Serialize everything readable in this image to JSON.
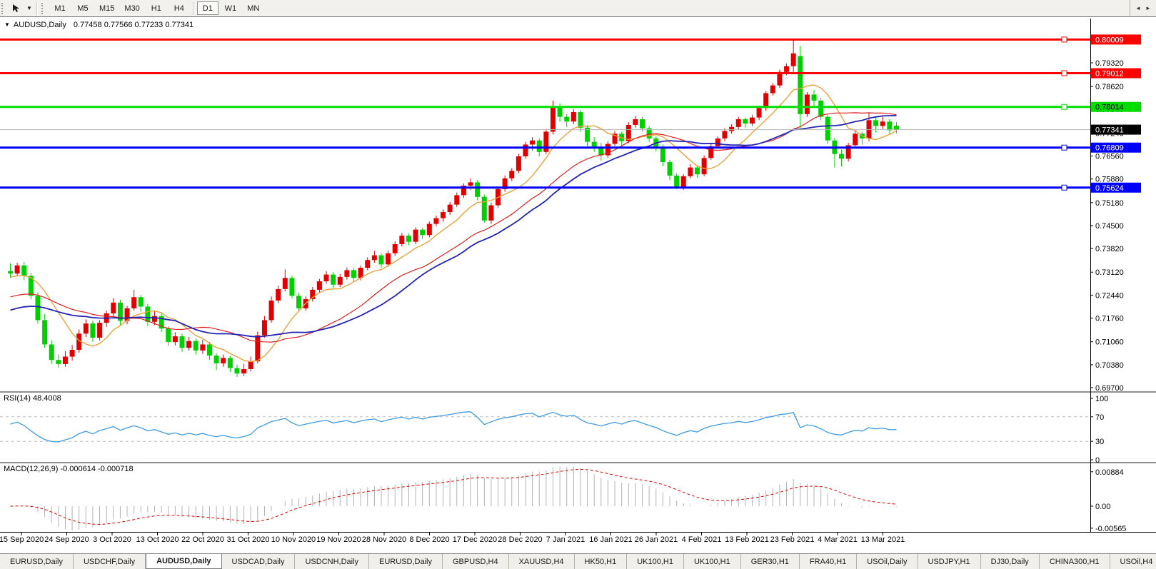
{
  "toolbar": {
    "timeframes": [
      "M1",
      "M5",
      "M15",
      "M30",
      "H1",
      "H4",
      "D1",
      "W1",
      "MN"
    ],
    "active_timeframe": "D1",
    "dropdown_caret": "▼"
  },
  "window": {
    "symbol_period": "AUDUSD,Daily",
    "ohlc_text": "0.77458 0.77566 0.77233 0.77341",
    "title_marker": "▼"
  },
  "chart_data": {
    "type": "candlestick",
    "symbol": "AUDUSD",
    "timeframe": "Daily",
    "last_bar": {
      "open": 0.77458,
      "high": 0.77566,
      "low": 0.77233,
      "close": 0.77341
    },
    "up_color": "#e00000",
    "down_color": "#00cf00",
    "ylim": [
      0.697,
      0.8055
    ],
    "price_axis_ticks": [
      "0.79320",
      "0.78620",
      "0.77940",
      "0.77240",
      "0.76560",
      "0.75880",
      "0.75180",
      "0.74500",
      "0.73820",
      "0.73120",
      "0.72440",
      "0.71760",
      "0.71060",
      "0.70380",
      "0.69700"
    ],
    "date_ticks": [
      "15 Sep 2020",
      "24 Sep 2020",
      "3 Oct 2020",
      "13 Oct 2020",
      "22 Oct 2020",
      "31 Oct 2020",
      "10 Nov 2020",
      "19 Nov 2020",
      "28 Nov 2020",
      "8 Dec 2020",
      "17 Dec 2020",
      "28 Dec 2020",
      "7 Jan 2021",
      "16 Jan 2021",
      "26 Jan 2021",
      "4 Feb 2021",
      "13 Feb 2021",
      "23 Feb 2021",
      "4 Mar 2021",
      "13 Mar 2021"
    ],
    "horizontal_lines": [
      {
        "label": "0.80009",
        "color": "#ff0000",
        "text_color": "#ffffff",
        "kind": "resistance"
      },
      {
        "label": "0.79012",
        "color": "#ff0000",
        "text_color": "#ffffff",
        "kind": "resistance"
      },
      {
        "label": "0.78014",
        "color": "#00dd00",
        "text_color": "#000000",
        "kind": "pivot"
      },
      {
        "label": "0.76809",
        "color": "#0000ff",
        "text_color": "#ffffff",
        "kind": "support"
      },
      {
        "label": "0.75624",
        "color": "#0000ff",
        "text_color": "#ffffff",
        "kind": "support"
      }
    ],
    "current_price": {
      "label": "0.77341",
      "line_color": "#b4b4b4",
      "box_color": "#000000",
      "text_color": "#ffffff"
    },
    "moving_averages": [
      {
        "name": "fast",
        "period": 8,
        "seed": 0.7295,
        "color": "#e8a23c",
        "width": 1.4
      },
      {
        "name": "mid",
        "period": 20,
        "seed": 0.7235,
        "color": "#dd2020",
        "width": 1.2
      },
      {
        "name": "slow",
        "period": 25,
        "seed": 0.7195,
        "color": "#2424b4",
        "width": 1.8
      }
    ],
    "rsi": {
      "label": "RSI(14) 48.4008",
      "period": 14,
      "value": 48.4008,
      "axis_ticks": [
        "100",
        "70",
        "30",
        "0"
      ],
      "levels": [
        70,
        30
      ],
      "line_color": "#3f9be0",
      "level_color": "#bcbcbc"
    },
    "macd": {
      "label": "MACD(12,26,9) -0.000614 -0.000718",
      "fast": 12,
      "slow": 26,
      "signal": 9,
      "value": -0.000614,
      "signal_value": -0.000718,
      "axis_ticks": [
        "0.00884",
        "0.00",
        "-0.00565"
      ],
      "hist_color": "#b2b2b2",
      "signal_color": "#e00000"
    },
    "candles": [
      [
        0.7315,
        0.7338,
        0.7295,
        0.7308
      ],
      [
        0.7308,
        0.734,
        0.73,
        0.7332
      ],
      [
        0.7332,
        0.7342,
        0.7288,
        0.7301
      ],
      [
        0.7301,
        0.731,
        0.7232,
        0.7242
      ],
      [
        0.7242,
        0.7252,
        0.716,
        0.717
      ],
      [
        0.717,
        0.7188,
        0.7088,
        0.7098
      ],
      [
        0.7098,
        0.711,
        0.704,
        0.7052
      ],
      [
        0.7052,
        0.7068,
        0.7029,
        0.704
      ],
      [
        0.704,
        0.7078,
        0.7032,
        0.7062
      ],
      [
        0.7062,
        0.7096,
        0.705,
        0.7082
      ],
      [
        0.7082,
        0.7142,
        0.7074,
        0.713
      ],
      [
        0.713,
        0.7172,
        0.712,
        0.716
      ],
      [
        0.716,
        0.7168,
        0.7106,
        0.7118
      ],
      [
        0.7118,
        0.717,
        0.711,
        0.7162
      ],
      [
        0.7162,
        0.7198,
        0.715,
        0.719
      ],
      [
        0.719,
        0.7235,
        0.7182,
        0.7222
      ],
      [
        0.7222,
        0.723,
        0.7155,
        0.7168
      ],
      [
        0.7168,
        0.7212,
        0.7158,
        0.7205
      ],
      [
        0.7205,
        0.726,
        0.7198,
        0.7238
      ],
      [
        0.7238,
        0.7245,
        0.7195,
        0.721
      ],
      [
        0.721,
        0.7218,
        0.7152,
        0.7165
      ],
      [
        0.7165,
        0.7196,
        0.7155,
        0.7182
      ],
      [
        0.7182,
        0.719,
        0.7135,
        0.7145
      ],
      [
        0.7145,
        0.7152,
        0.7094,
        0.7105
      ],
      [
        0.7105,
        0.7134,
        0.7095,
        0.7122
      ],
      [
        0.7122,
        0.713,
        0.7076,
        0.7088
      ],
      [
        0.7088,
        0.712,
        0.708,
        0.7108
      ],
      [
        0.7108,
        0.7115,
        0.7068,
        0.708
      ],
      [
        0.708,
        0.7112,
        0.707,
        0.7098
      ],
      [
        0.7098,
        0.7105,
        0.7052,
        0.7065
      ],
      [
        0.7065,
        0.7072,
        0.7022,
        0.7042
      ],
      [
        0.7042,
        0.7068,
        0.7032,
        0.7058
      ],
      [
        0.7058,
        0.7064,
        0.7016,
        0.7028
      ],
      [
        0.7028,
        0.7038,
        0.7002,
        0.7012
      ],
      [
        0.7012,
        0.704,
        0.7004,
        0.7025
      ],
      [
        0.7025,
        0.7062,
        0.7018,
        0.7048
      ],
      [
        0.7048,
        0.7136,
        0.7042,
        0.7125
      ],
      [
        0.7125,
        0.7182,
        0.7118,
        0.717
      ],
      [
        0.717,
        0.724,
        0.7162,
        0.7228
      ],
      [
        0.7228,
        0.7272,
        0.722,
        0.7262
      ],
      [
        0.7262,
        0.732,
        0.7255,
        0.7295
      ],
      [
        0.7295,
        0.7302,
        0.7235,
        0.7242
      ],
      [
        0.7242,
        0.725,
        0.7196,
        0.7205
      ],
      [
        0.7205,
        0.724,
        0.7198,
        0.7232
      ],
      [
        0.7232,
        0.7268,
        0.7225,
        0.726
      ],
      [
        0.726,
        0.7292,
        0.7252,
        0.7285
      ],
      [
        0.7285,
        0.7315,
        0.7278,
        0.7305
      ],
      [
        0.7305,
        0.7312,
        0.7265,
        0.7275
      ],
      [
        0.7275,
        0.7306,
        0.7268,
        0.7298
      ],
      [
        0.7298,
        0.7326,
        0.729,
        0.7318
      ],
      [
        0.7318,
        0.7324,
        0.7285,
        0.7295
      ],
      [
        0.7295,
        0.7332,
        0.7288,
        0.7325
      ],
      [
        0.7325,
        0.7356,
        0.7318,
        0.7348
      ],
      [
        0.7348,
        0.7375,
        0.734,
        0.7362
      ],
      [
        0.7362,
        0.7368,
        0.7325,
        0.7335
      ],
      [
        0.7335,
        0.7376,
        0.7328,
        0.7368
      ],
      [
        0.7368,
        0.7404,
        0.736,
        0.7395
      ],
      [
        0.7395,
        0.7428,
        0.7388,
        0.742
      ],
      [
        0.742,
        0.7426,
        0.7392,
        0.7402
      ],
      [
        0.7402,
        0.7445,
        0.7395,
        0.7438
      ],
      [
        0.7438,
        0.7444,
        0.741,
        0.7422
      ],
      [
        0.7422,
        0.7462,
        0.7415,
        0.7455
      ],
      [
        0.7455,
        0.748,
        0.7448,
        0.7472
      ],
      [
        0.7472,
        0.7498,
        0.7462,
        0.749
      ],
      [
        0.749,
        0.752,
        0.7482,
        0.7512
      ],
      [
        0.7512,
        0.7548,
        0.7505,
        0.754
      ],
      [
        0.754,
        0.7575,
        0.7532,
        0.7568
      ],
      [
        0.7568,
        0.759,
        0.7555,
        0.7578
      ],
      [
        0.7578,
        0.7585,
        0.7525,
        0.7535
      ],
      [
        0.7535,
        0.7542,
        0.7458,
        0.7465
      ],
      [
        0.7465,
        0.7518,
        0.7455,
        0.751
      ],
      [
        0.751,
        0.7565,
        0.7502,
        0.7558
      ],
      [
        0.7558,
        0.7598,
        0.755,
        0.759
      ],
      [
        0.759,
        0.762,
        0.7582,
        0.7612
      ],
      [
        0.7612,
        0.7662,
        0.7605,
        0.7655
      ],
      [
        0.7655,
        0.7698,
        0.7648,
        0.769
      ],
      [
        0.769,
        0.7712,
        0.7672,
        0.7702
      ],
      [
        0.7702,
        0.7708,
        0.7655,
        0.7668
      ],
      [
        0.7668,
        0.7736,
        0.7662,
        0.7728
      ],
      [
        0.7728,
        0.782,
        0.772,
        0.78
      ],
      [
        0.78,
        0.7812,
        0.7758,
        0.7772
      ],
      [
        0.7772,
        0.778,
        0.7742,
        0.7758
      ],
      [
        0.7758,
        0.7795,
        0.775,
        0.7786
      ],
      [
        0.7786,
        0.7792,
        0.7728,
        0.774
      ],
      [
        0.774,
        0.7748,
        0.7685,
        0.7698
      ],
      [
        0.7698,
        0.7712,
        0.7668,
        0.7682
      ],
      [
        0.7682,
        0.7695,
        0.7642,
        0.7658
      ],
      [
        0.7658,
        0.77,
        0.765,
        0.7692
      ],
      [
        0.7692,
        0.773,
        0.7685,
        0.7722
      ],
      [
        0.7722,
        0.7728,
        0.7688,
        0.77
      ],
      [
        0.77,
        0.7756,
        0.7694,
        0.7748
      ],
      [
        0.7748,
        0.7775,
        0.774,
        0.7765
      ],
      [
        0.7765,
        0.7772,
        0.7728,
        0.7738
      ],
      [
        0.7738,
        0.7745,
        0.7698,
        0.7708
      ],
      [
        0.7708,
        0.7715,
        0.767,
        0.7682
      ],
      [
        0.7682,
        0.769,
        0.7626,
        0.7638
      ],
      [
        0.7638,
        0.7645,
        0.7585,
        0.7598
      ],
      [
        0.7598,
        0.7605,
        0.7558,
        0.7562
      ],
      [
        0.7562,
        0.7602,
        0.7556,
        0.7596
      ],
      [
        0.7596,
        0.7632,
        0.759,
        0.7622
      ],
      [
        0.7622,
        0.7628,
        0.7592,
        0.7602
      ],
      [
        0.7602,
        0.7658,
        0.7596,
        0.765
      ],
      [
        0.765,
        0.7692,
        0.7644,
        0.7685
      ],
      [
        0.7685,
        0.7715,
        0.7678,
        0.7708
      ],
      [
        0.7708,
        0.7738,
        0.77,
        0.773
      ],
      [
        0.773,
        0.775,
        0.7722,
        0.7742
      ],
      [
        0.7742,
        0.7772,
        0.7735,
        0.7765
      ],
      [
        0.7765,
        0.777,
        0.774,
        0.7752
      ],
      [
        0.7752,
        0.7778,
        0.7745,
        0.777
      ],
      [
        0.777,
        0.7805,
        0.7762,
        0.7798
      ],
      [
        0.7798,
        0.7848,
        0.779,
        0.7842
      ],
      [
        0.7842,
        0.7872,
        0.7835,
        0.7865
      ],
      [
        0.7865,
        0.7912,
        0.7858,
        0.7905
      ],
      [
        0.7905,
        0.793,
        0.7895,
        0.7922
      ],
      [
        0.7922,
        0.8001,
        0.7905,
        0.796
      ],
      [
        0.7952,
        0.7982,
        0.7738,
        0.778
      ],
      [
        0.778,
        0.7845,
        0.7772,
        0.7838
      ],
      [
        0.7838,
        0.7852,
        0.7805,
        0.782
      ],
      [
        0.782,
        0.7828,
        0.7762,
        0.7772
      ],
      [
        0.7772,
        0.7778,
        0.7692,
        0.7702
      ],
      [
        0.7702,
        0.771,
        0.7622,
        0.7662
      ],
      [
        0.7662,
        0.7675,
        0.7625,
        0.7648
      ],
      [
        0.7648,
        0.7695,
        0.764,
        0.7688
      ],
      [
        0.7688,
        0.773,
        0.768,
        0.7722
      ],
      [
        0.7722,
        0.7728,
        0.769,
        0.7708
      ],
      [
        0.7708,
        0.7785,
        0.77,
        0.7762
      ],
      [
        0.7762,
        0.777,
        0.7725,
        0.7745
      ],
      [
        0.7745,
        0.7772,
        0.7736,
        0.7758
      ],
      [
        0.7758,
        0.7765,
        0.772,
        0.7732
      ],
      [
        0.77458,
        0.77566,
        0.77233,
        0.77341
      ]
    ]
  },
  "tabs": {
    "items": [
      {
        "label": "EURUSD,Daily",
        "active": false
      },
      {
        "label": "USDCHF,Daily",
        "active": false
      },
      {
        "label": "AUDUSD,Daily",
        "active": true
      },
      {
        "label": "USDCAD,Daily",
        "active": false
      },
      {
        "label": "USDCNH,Daily",
        "active": false
      },
      {
        "label": "EURUSD,Daily",
        "active": false
      },
      {
        "label": "GBPUSD,H4",
        "active": false
      },
      {
        "label": "XAUUSD,H4",
        "active": false
      },
      {
        "label": "HK50,H1",
        "active": false
      },
      {
        "label": "UK100,H1",
        "active": false
      },
      {
        "label": "UK100,H1",
        "active": false
      },
      {
        "label": "GER30,H1",
        "active": false
      },
      {
        "label": "FRA40,H1",
        "active": false
      },
      {
        "label": "USOil,Daily",
        "active": false
      },
      {
        "label": "USDJPY,H1",
        "active": false
      },
      {
        "label": "DJ30,Daily",
        "active": false
      },
      {
        "label": "CHINA300,H1",
        "active": false
      },
      {
        "label": "USOil,H4",
        "active": false
      }
    ],
    "nav_left": "◄",
    "nav_right": "►"
  }
}
